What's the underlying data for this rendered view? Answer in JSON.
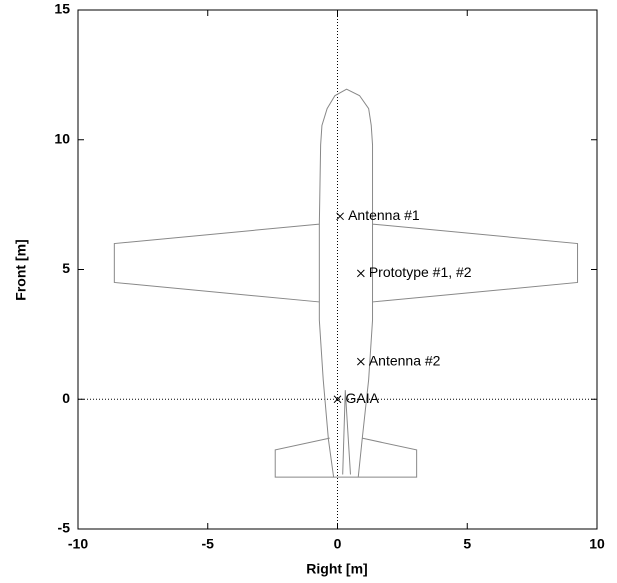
{
  "chart_data": {
    "type": "scatter",
    "x_label": "Right [m]",
    "y_label": "Front [m]",
    "xlim": [
      -10,
      10
    ],
    "xticks": [
      -10,
      -5,
      0,
      5,
      10
    ],
    "ylim": [
      -5,
      15
    ],
    "yticks": [
      -5,
      0,
      5,
      10,
      15
    ],
    "zero_lines": true,
    "series": [
      {
        "style": "line",
        "color": "#888888",
        "x": [
          -0.15,
          -0.35,
          -0.55,
          -0.7,
          -0.7,
          -0.65,
          -0.6,
          -0.4,
          -0.1,
          0.35,
          0.85,
          1.2,
          1.3,
          1.35,
          1.35,
          1.35,
          1.2,
          0.95,
          0.8,
          null,
          -0.7,
          -8.6,
          -8.6,
          -0.7,
          null,
          1.35,
          9.25,
          9.25,
          1.35,
          null,
          -0.3,
          -2.4,
          -2.4,
          3.05,
          3.05,
          0.95,
          null,
          0.2,
          0.3,
          0.5
        ],
        "y": [
          -3.0,
          -1.55,
          0.75,
          3.05,
          6.75,
          9.8,
          10.55,
          11.2,
          11.7,
          11.95,
          11.7,
          11.2,
          10.55,
          9.8,
          6.75,
          3.05,
          0.75,
          -1.55,
          -3.0,
          null,
          6.75,
          6.0,
          4.5,
          3.75,
          null,
          6.75,
          6.0,
          4.5,
          3.75,
          null,
          -1.5,
          -1.95,
          -3.0,
          -3.0,
          -1.95,
          -1.5,
          null,
          -2.9,
          0.35,
          -2.9
        ]
      },
      {
        "style": "points",
        "color": "#000000",
        "x": [
          0.1,
          0.9,
          0.9,
          0.0
        ],
        "y": [
          7.05,
          4.85,
          1.45,
          0.0
        ],
        "labels": [
          "Antenna #1",
          "Prototype #1, #2",
          "Antenna #2",
          "GAIA"
        ]
      }
    ]
  }
}
